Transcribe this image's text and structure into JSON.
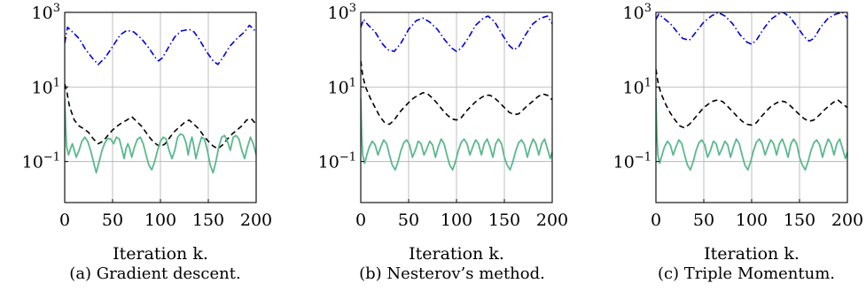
{
  "chart_data": [
    {
      "type": "line",
      "caption": "(a) Gradient descent.",
      "xlabel": "Iteration k.",
      "ylabel": "",
      "xlim": [
        0,
        200
      ],
      "ylim_log10": [
        -2.1,
        3.0
      ],
      "y_scale": "log",
      "grid": true,
      "x_ticks": [
        "0",
        "50",
        "100",
        "150",
        "200"
      ],
      "y_ticks": [
        {
          "base": "10",
          "exp": "3"
        },
        {
          "base": "10",
          "exp": "1"
        },
        {
          "base": "10",
          "exp": "−1"
        }
      ],
      "series": [
        {
          "style": "dashdot",
          "color": "#0000dd",
          "x": [
            0,
            3,
            8,
            15,
            22,
            30,
            35,
            42,
            50,
            58,
            65,
            72,
            80,
            88,
            95,
            98,
            102,
            108,
            115,
            122,
            130,
            135,
            140,
            148,
            155,
            160,
            165,
            172,
            180,
            188,
            193,
            200
          ],
          "y": [
            150,
            400,
            300,
            200,
            100,
            55,
            40,
            60,
            120,
            250,
            330,
            300,
            200,
            110,
            60,
            50,
            60,
            110,
            220,
            320,
            350,
            300,
            200,
            90,
            50,
            40,
            60,
            120,
            200,
            300,
            450,
            300
          ]
        },
        {
          "style": "dashed",
          "color": "#000000",
          "x": [
            0,
            2,
            5,
            10,
            15,
            20,
            25,
            30,
            35,
            40,
            45,
            50,
            55,
            60,
            65,
            70,
            75,
            80,
            85,
            90,
            95,
            100,
            105,
            110,
            115,
            120,
            125,
            130,
            135,
            140,
            145,
            150,
            155,
            160,
            165,
            170,
            175,
            180,
            185,
            190,
            195,
            200
          ],
          "y": [
            12,
            8,
            3,
            1.3,
            0.9,
            0.75,
            0.6,
            0.4,
            0.3,
            0.35,
            0.5,
            0.7,
            0.9,
            1.1,
            1.3,
            1.6,
            1.2,
            0.9,
            0.6,
            0.4,
            0.3,
            0.25,
            0.3,
            0.45,
            0.65,
            0.85,
            1.1,
            1.3,
            1.0,
            0.75,
            0.5,
            0.35,
            0.26,
            0.22,
            0.28,
            0.4,
            0.55,
            0.7,
            0.9,
            1.3,
            1.4,
            1.0
          ]
        },
        {
          "style": "solid",
          "color": "#5bb88e",
          "x": [
            0,
            1,
            2,
            4,
            6,
            8,
            10,
            12,
            15,
            18,
            21,
            24,
            27,
            30,
            33,
            36,
            39,
            42,
            45,
            48,
            51,
            54,
            57,
            60,
            62,
            64,
            66,
            68,
            70,
            73,
            76,
            79,
            82,
            85,
            88,
            91,
            94,
            97,
            100,
            103,
            106,
            109,
            112,
            115,
            118,
            121,
            124,
            127,
            129,
            131,
            133,
            135,
            137,
            140,
            143,
            146,
            149,
            152,
            155,
            158,
            161,
            164,
            167,
            170,
            173,
            176,
            179,
            182,
            185,
            188,
            191,
            194,
            197,
            200
          ],
          "y": [
            5,
            0.8,
            0.25,
            0.15,
            0.22,
            0.3,
            0.2,
            0.13,
            0.2,
            0.35,
            0.45,
            0.35,
            0.2,
            0.1,
            0.05,
            0.1,
            0.2,
            0.32,
            0.42,
            0.4,
            0.3,
            0.45,
            0.4,
            0.2,
            0.12,
            0.22,
            0.3,
            0.22,
            0.13,
            0.25,
            0.4,
            0.45,
            0.3,
            0.15,
            0.08,
            0.06,
            0.1,
            0.2,
            0.35,
            0.45,
            0.4,
            0.2,
            0.12,
            0.2,
            0.45,
            0.55,
            0.5,
            0.3,
            0.15,
            0.3,
            0.45,
            0.25,
            0.12,
            0.25,
            0.45,
            0.4,
            0.2,
            0.08,
            0.05,
            0.1,
            0.25,
            0.45,
            0.5,
            0.35,
            0.2,
            0.45,
            0.5,
            0.4,
            0.2,
            0.12,
            0.25,
            0.45,
            0.3,
            0.15
          ]
        }
      ]
    },
    {
      "type": "line",
      "caption": "(b) Nesterov’s method.",
      "xlabel": "Iteration k.",
      "ylabel": "",
      "xlim": [
        0,
        200
      ],
      "ylim_log10": [
        -2.1,
        3.0
      ],
      "y_scale": "log",
      "grid": true,
      "x_ticks": [
        "0",
        "50",
        "100",
        "150",
        "200"
      ],
      "y_ticks": [
        {
          "base": "10",
          "exp": "3"
        },
        {
          "base": "10",
          "exp": "1"
        },
        {
          "base": "10",
          "exp": "−1"
        }
      ],
      "series": [
        {
          "style": "dashdot",
          "color": "#0000dd",
          "x": [
            0,
            3,
            8,
            15,
            22,
            28,
            35,
            42,
            50,
            58,
            65,
            72,
            80,
            88,
            95,
            100,
            105,
            112,
            120,
            128,
            133,
            140,
            148,
            155,
            160,
            165,
            172,
            180,
            188,
            195,
            200
          ],
          "y": [
            400,
            650,
            450,
            300,
            150,
            100,
            90,
            150,
            350,
            600,
            700,
            550,
            350,
            180,
            110,
            90,
            110,
            200,
            450,
            700,
            800,
            550,
            250,
            130,
            100,
            120,
            250,
            500,
            700,
            800,
            500
          ]
        },
        {
          "style": "dashed",
          "color": "#000000",
          "x": [
            0,
            2,
            5,
            10,
            15,
            20,
            25,
            30,
            35,
            40,
            45,
            50,
            55,
            60,
            65,
            70,
            75,
            80,
            85,
            90,
            95,
            100,
            105,
            110,
            115,
            120,
            125,
            130,
            135,
            140,
            145,
            150,
            155,
            160,
            165,
            170,
            175,
            180,
            185,
            190,
            195,
            200
          ],
          "y": [
            50,
            20,
            10,
            5,
            2.8,
            1.6,
            1.1,
            1.0,
            1.3,
            2.0,
            2.8,
            3.8,
            5.0,
            6.0,
            7.0,
            6.5,
            5.0,
            3.6,
            2.5,
            1.8,
            1.4,
            1.3,
            1.5,
            2.2,
            3.0,
            4.0,
            5.0,
            6.0,
            6.0,
            5.0,
            3.8,
            2.8,
            2.1,
            1.8,
            1.9,
            2.5,
            3.3,
            4.2,
            5.5,
            6.5,
            6.0,
            4.5
          ]
        },
        {
          "style": "solid",
          "color": "#5bb88e",
          "x": [
            0,
            1,
            2,
            4,
            6,
            9,
            12,
            15,
            18,
            21,
            24,
            27,
            30,
            33,
            36,
            39,
            42,
            45,
            48,
            51,
            54,
            57,
            60,
            63,
            66,
            69,
            72,
            75,
            78,
            81,
            84,
            87,
            90,
            93,
            96,
            99,
            102,
            105,
            108,
            111,
            114,
            117,
            120,
            123,
            126,
            129,
            132,
            135,
            138,
            141,
            144,
            147,
            150,
            153,
            156,
            159,
            162,
            165,
            168,
            171,
            174,
            177,
            180,
            183,
            186,
            189,
            192,
            195,
            198,
            200
          ],
          "y": [
            5,
            0.5,
            0.15,
            0.09,
            0.14,
            0.25,
            0.35,
            0.28,
            0.15,
            0.25,
            0.38,
            0.3,
            0.15,
            0.08,
            0.06,
            0.1,
            0.2,
            0.32,
            0.38,
            0.28,
            0.13,
            0.2,
            0.35,
            0.3,
            0.15,
            0.22,
            0.35,
            0.28,
            0.13,
            0.25,
            0.4,
            0.3,
            0.15,
            0.08,
            0.06,
            0.1,
            0.2,
            0.33,
            0.4,
            0.3,
            0.15,
            0.25,
            0.38,
            0.3,
            0.15,
            0.3,
            0.4,
            0.25,
            0.13,
            0.3,
            0.4,
            0.3,
            0.13,
            0.08,
            0.06,
            0.1,
            0.2,
            0.32,
            0.38,
            0.28,
            0.13,
            0.25,
            0.4,
            0.3,
            0.15,
            0.3,
            0.4,
            0.22,
            0.12,
            0.18
          ]
        }
      ]
    },
    {
      "type": "line",
      "caption": "(c) Triple Momentum.",
      "xlabel": "Iteration k.",
      "ylabel": "",
      "xlim": [
        0,
        200
      ],
      "ylim_log10": [
        -2.1,
        3.0
      ],
      "y_scale": "log",
      "grid": true,
      "x_ticks": [
        "0",
        "50",
        "100",
        "150",
        "200"
      ],
      "y_ticks": [
        {
          "base": "10",
          "exp": "3"
        },
        {
          "base": "10",
          "exp": "1"
        },
        {
          "base": "10",
          "exp": "−1"
        }
      ],
      "series": [
        {
          "style": "dashdot",
          "color": "#0000dd",
          "x": [
            0,
            3,
            8,
            15,
            22,
            28,
            35,
            42,
            50,
            58,
            65,
            72,
            80,
            88,
            95,
            100,
            105,
            112,
            120,
            128,
            133,
            140,
            148,
            155,
            160,
            165,
            172,
            180,
            188,
            195,
            200
          ],
          "y": [
            650,
            900,
            700,
            500,
            300,
            200,
            180,
            300,
            550,
            800,
            1000,
            800,
            500,
            250,
            160,
            140,
            180,
            350,
            650,
            900,
            1000,
            750,
            400,
            220,
            170,
            200,
            400,
            700,
            900,
            1000,
            700
          ]
        },
        {
          "style": "dashed",
          "color": "#000000",
          "x": [
            0,
            2,
            5,
            10,
            15,
            20,
            25,
            30,
            35,
            40,
            45,
            50,
            55,
            60,
            65,
            70,
            75,
            80,
            85,
            90,
            95,
            100,
            105,
            110,
            115,
            120,
            125,
            130,
            135,
            140,
            145,
            150,
            155,
            160,
            165,
            170,
            175,
            180,
            185,
            190,
            195,
            200
          ],
          "y": [
            30,
            14,
            7,
            3.5,
            2.0,
            1.3,
            0.9,
            0.8,
            1.0,
            1.4,
            2.0,
            2.8,
            3.5,
            4.2,
            4.5,
            4.0,
            3.0,
            2.2,
            1.6,
            1.2,
            1.0,
            0.95,
            1.1,
            1.6,
            2.2,
            3.0,
            3.6,
            4.2,
            4.0,
            3.2,
            2.4,
            1.8,
            1.4,
            1.2,
            1.3,
            1.7,
            2.3,
            3.0,
            3.8,
            4.5,
            3.5,
            2.8
          ]
        },
        {
          "style": "solid",
          "color": "#5bb88e",
          "x": [
            0,
            1,
            2,
            4,
            6,
            9,
            12,
            15,
            18,
            21,
            24,
            27,
            30,
            33,
            36,
            39,
            42,
            45,
            48,
            51,
            54,
            57,
            60,
            63,
            66,
            69,
            72,
            75,
            78,
            81,
            84,
            87,
            90,
            93,
            96,
            99,
            102,
            105,
            108,
            111,
            114,
            117,
            120,
            123,
            126,
            129,
            132,
            135,
            138,
            141,
            144,
            147,
            150,
            153,
            156,
            159,
            162,
            165,
            168,
            171,
            174,
            177,
            180,
            183,
            186,
            189,
            192,
            195,
            198,
            200
          ],
          "y": [
            5,
            0.5,
            0.15,
            0.09,
            0.14,
            0.25,
            0.35,
            0.28,
            0.15,
            0.25,
            0.38,
            0.3,
            0.15,
            0.08,
            0.06,
            0.1,
            0.2,
            0.32,
            0.38,
            0.28,
            0.13,
            0.2,
            0.35,
            0.3,
            0.15,
            0.22,
            0.35,
            0.28,
            0.13,
            0.25,
            0.4,
            0.3,
            0.15,
            0.08,
            0.06,
            0.1,
            0.2,
            0.33,
            0.4,
            0.3,
            0.15,
            0.25,
            0.38,
            0.3,
            0.15,
            0.3,
            0.4,
            0.25,
            0.13,
            0.3,
            0.4,
            0.3,
            0.13,
            0.08,
            0.06,
            0.1,
            0.2,
            0.32,
            0.38,
            0.28,
            0.13,
            0.25,
            0.4,
            0.3,
            0.15,
            0.3,
            0.4,
            0.22,
            0.12,
            0.18
          ]
        }
      ]
    }
  ]
}
